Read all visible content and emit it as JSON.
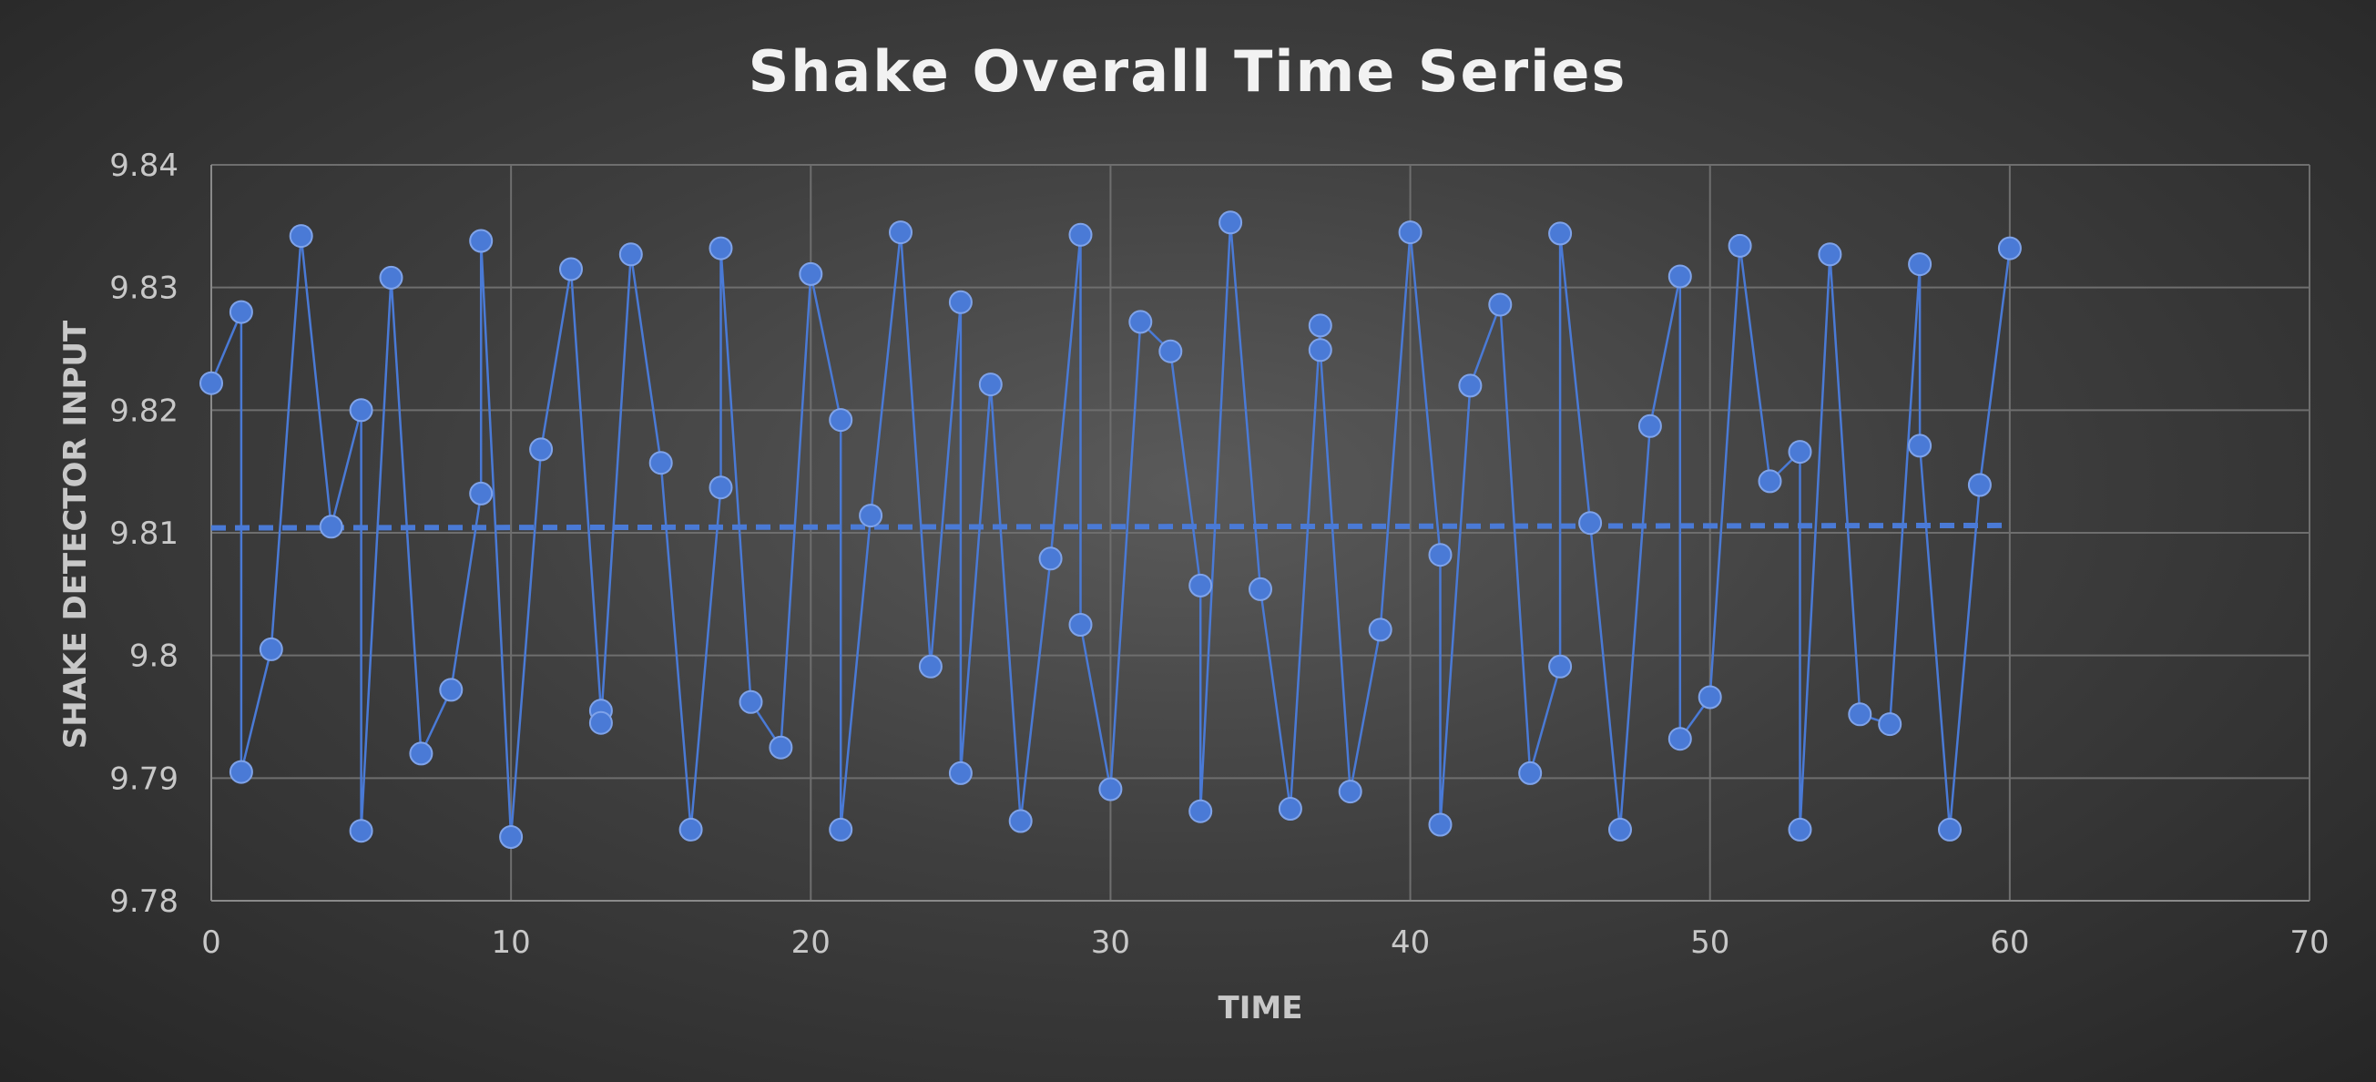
{
  "chart_data": {
    "type": "scatter",
    "title": "Shake Overall Time Series",
    "xlabel": "TIME",
    "ylabel": "SHAKE DETECTOR INPUT",
    "xlim": [
      0,
      70
    ],
    "ylim": [
      9.78,
      9.84
    ],
    "x_ticks": [
      "0",
      "10",
      "20",
      "30",
      "40",
      "50",
      "60",
      "70"
    ],
    "y_ticks": [
      "9.78",
      "9.79",
      "9.8",
      "9.81",
      "9.82",
      "9.83",
      "9.84"
    ],
    "grid": true,
    "line_style": "straight lines with markers",
    "trendline": {
      "type": "linear",
      "style": "dashed",
      "x": [
        0,
        60
      ],
      "y": [
        9.8104,
        9.8106
      ]
    },
    "series": [
      {
        "color": "#4a7ad6",
        "x": [
          0,
          1,
          1,
          2,
          3,
          4,
          5,
          5,
          6,
          7,
          8,
          9,
          9,
          10,
          11,
          12,
          13,
          13,
          14,
          15,
          16,
          17,
          17,
          18,
          19,
          20,
          21,
          21,
          22,
          23,
          24,
          25,
          25,
          26,
          27,
          28,
          29,
          29,
          30,
          31,
          32,
          33,
          33,
          34,
          35,
          36,
          37,
          37,
          38,
          39,
          40,
          41,
          41,
          42,
          43,
          44,
          45,
          45,
          46,
          47,
          48,
          49,
          49,
          50,
          51,
          52,
          53,
          53,
          54,
          55,
          56,
          57,
          57,
          58,
          59,
          60
        ],
        "y": [
          9.8222,
          9.828,
          9.7905,
          9.8005,
          9.8342,
          9.8105,
          9.82,
          9.7857,
          9.8308,
          9.792,
          9.7972,
          9.8132,
          9.8338,
          9.7852,
          9.8168,
          9.8315,
          9.7955,
          9.7945,
          9.8327,
          9.8157,
          9.7858,
          9.8137,
          9.8332,
          9.7962,
          9.7925,
          9.8311,
          9.8192,
          9.7858,
          9.8114,
          9.8345,
          9.7991,
          9.8288,
          9.7904,
          9.8221,
          9.7865,
          9.8079,
          9.8343,
          9.8025,
          9.7891,
          9.8272,
          9.8248,
          9.8057,
          9.7873,
          9.8353,
          9.8054,
          9.7875,
          9.8269,
          9.8249,
          9.7889,
          9.8021,
          9.8345,
          9.8082,
          9.7862,
          9.822,
          9.8286,
          9.7904,
          9.7991,
          9.8344,
          9.8108,
          9.7858,
          9.8187,
          9.8309,
          9.7932,
          9.7966,
          9.8334,
          9.8142,
          9.8166,
          9.7858,
          9.8327,
          9.7952,
          9.7944,
          9.8319,
          9.8171,
          9.7858,
          9.8139,
          9.8332
        ]
      }
    ]
  }
}
